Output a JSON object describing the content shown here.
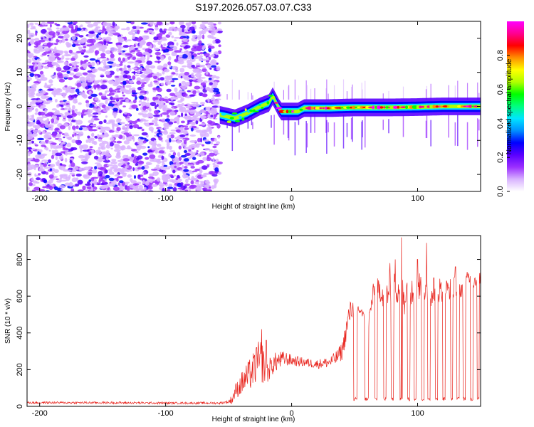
{
  "title": "S197.2026.057.03.07.C33",
  "chart_data": [
    {
      "type": "heatmap",
      "name": "spectrogram",
      "xlabel": "Height of straight line (km)",
      "ylabel": "Frequency (Hz)",
      "xlim": [
        -210,
        150
      ],
      "ylim": [
        -25,
        25
      ],
      "xticks": [
        -200,
        -100,
        0,
        100
      ],
      "xtick_labels": [
        "-200",
        "-100",
        "0",
        "100"
      ],
      "yticks": [
        -20,
        -10,
        0,
        10,
        20
      ],
      "ytick_labels": [
        "-20",
        "-10",
        "0",
        "10",
        "20"
      ],
      "colorbar": {
        "label": "Normalized spectral amplitude",
        "range": [
          0,
          1
        ],
        "ticks": [
          0,
          0.2,
          0.4,
          0.6,
          0.8
        ],
        "tick_labels": [
          "0.0",
          "0.2",
          "0.4",
          "0.6",
          "0.8"
        ],
        "colors": [
          "#ffffff",
          "#d9b3ff",
          "#9b30ff",
          "#5a00ff",
          "#0000ff",
          "#0090ff",
          "#00e5ff",
          "#00ff80",
          "#00ff00",
          "#b0ff00",
          "#ffff00",
          "#ff9000",
          "#ff0000",
          "#ff0090",
          "#ff00ff"
        ]
      },
      "noise_region_x": [
        -210,
        -57
      ],
      "carrier": {
        "x": [
          -57,
          -45,
          -35,
          -25,
          -18,
          -15,
          -10,
          -8,
          5,
          10,
          30,
          50,
          80,
          100,
          120,
          150
        ],
        "freq": [
          -2.5,
          -3.5,
          -2,
          0,
          1,
          3,
          -0.5,
          -1.5,
          -1.5,
          -0.5,
          -0.5,
          -0.3,
          -0.3,
          -0.2,
          0,
          0
        ]
      }
    },
    {
      "type": "line",
      "name": "snr",
      "xlabel": "Height of straight line (km)",
      "ylabel": "SNR (10 * v/v)",
      "xlim": [
        -210,
        150
      ],
      "ylim": [
        0,
        930
      ],
      "xticks": [
        -200,
        -100,
        0,
        100
      ],
      "xtick_labels": [
        "-200",
        "-100",
        "0",
        "100"
      ],
      "yticks": [
        0,
        200,
        400,
        600,
        800
      ],
      "ytick_labels": [
        "0",
        "200",
        "400",
        "600",
        "800"
      ],
      "line_color": "#e8231c",
      "envelope": {
        "x": [
          -210,
          -150,
          -100,
          -57,
          -50,
          -47,
          -45,
          -40,
          -38,
          -35,
          -30,
          -25,
          -22,
          -20,
          -18,
          -15,
          -10,
          -5,
          0,
          10,
          20,
          30,
          35,
          40,
          43,
          45,
          47,
          50,
          55,
          58,
          60,
          62,
          65,
          70,
          75,
          80,
          85,
          90,
          95,
          100,
          105,
          110,
          115,
          120,
          125,
          130,
          135,
          140,
          145,
          150
        ],
        "base": [
          20,
          20,
          18,
          18,
          25,
          40,
          80,
          120,
          140,
          160,
          200,
          250,
          230,
          170,
          200,
          230,
          250,
          260,
          250,
          240,
          230,
          240,
          260,
          300,
          400,
          480,
          520,
          540,
          520,
          470,
          420,
          500,
          620,
          640,
          600,
          680,
          650,
          620,
          640,
          660,
          630,
          620,
          650,
          620,
          640,
          650,
          640,
          700,
          680,
          700
        ],
        "amp": [
          6,
          6,
          6,
          6,
          10,
          30,
          40,
          60,
          80,
          80,
          100,
          120,
          110,
          80,
          60,
          60,
          50,
          40,
          30,
          25,
          25,
          30,
          40,
          50,
          60,
          70,
          60,
          40,
          30,
          30,
          40,
          50,
          60,
          70,
          90,
          100,
          110,
          130,
          100,
          90,
          80,
          80,
          70,
          80,
          60,
          60,
          50,
          40,
          40,
          30
        ]
      },
      "dropouts": [
        [
          49,
          52
        ],
        [
          58,
          61
        ],
        [
          66,
          68
        ],
        [
          73,
          75
        ],
        [
          79,
          81
        ],
        [
          86,
          88
        ],
        [
          92,
          94
        ],
        [
          97,
          99
        ],
        [
          103,
          105
        ],
        [
          108,
          110
        ],
        [
          114,
          116
        ],
        [
          120,
          122
        ],
        [
          126,
          128
        ],
        [
          131,
          133
        ],
        [
          136,
          138
        ],
        [
          142,
          144
        ],
        [
          147,
          149
        ]
      ],
      "dropout_level": 40,
      "spikes": [
        [
          -28,
          320
        ],
        [
          -24,
          420
        ],
        [
          -20,
          360
        ],
        [
          78,
          780
        ],
        [
          82,
          800
        ],
        [
          87,
          920
        ],
        [
          100,
          800
        ],
        [
          107,
          890
        ],
        [
          113,
          700
        ],
        [
          130,
          760
        ]
      ]
    }
  ]
}
